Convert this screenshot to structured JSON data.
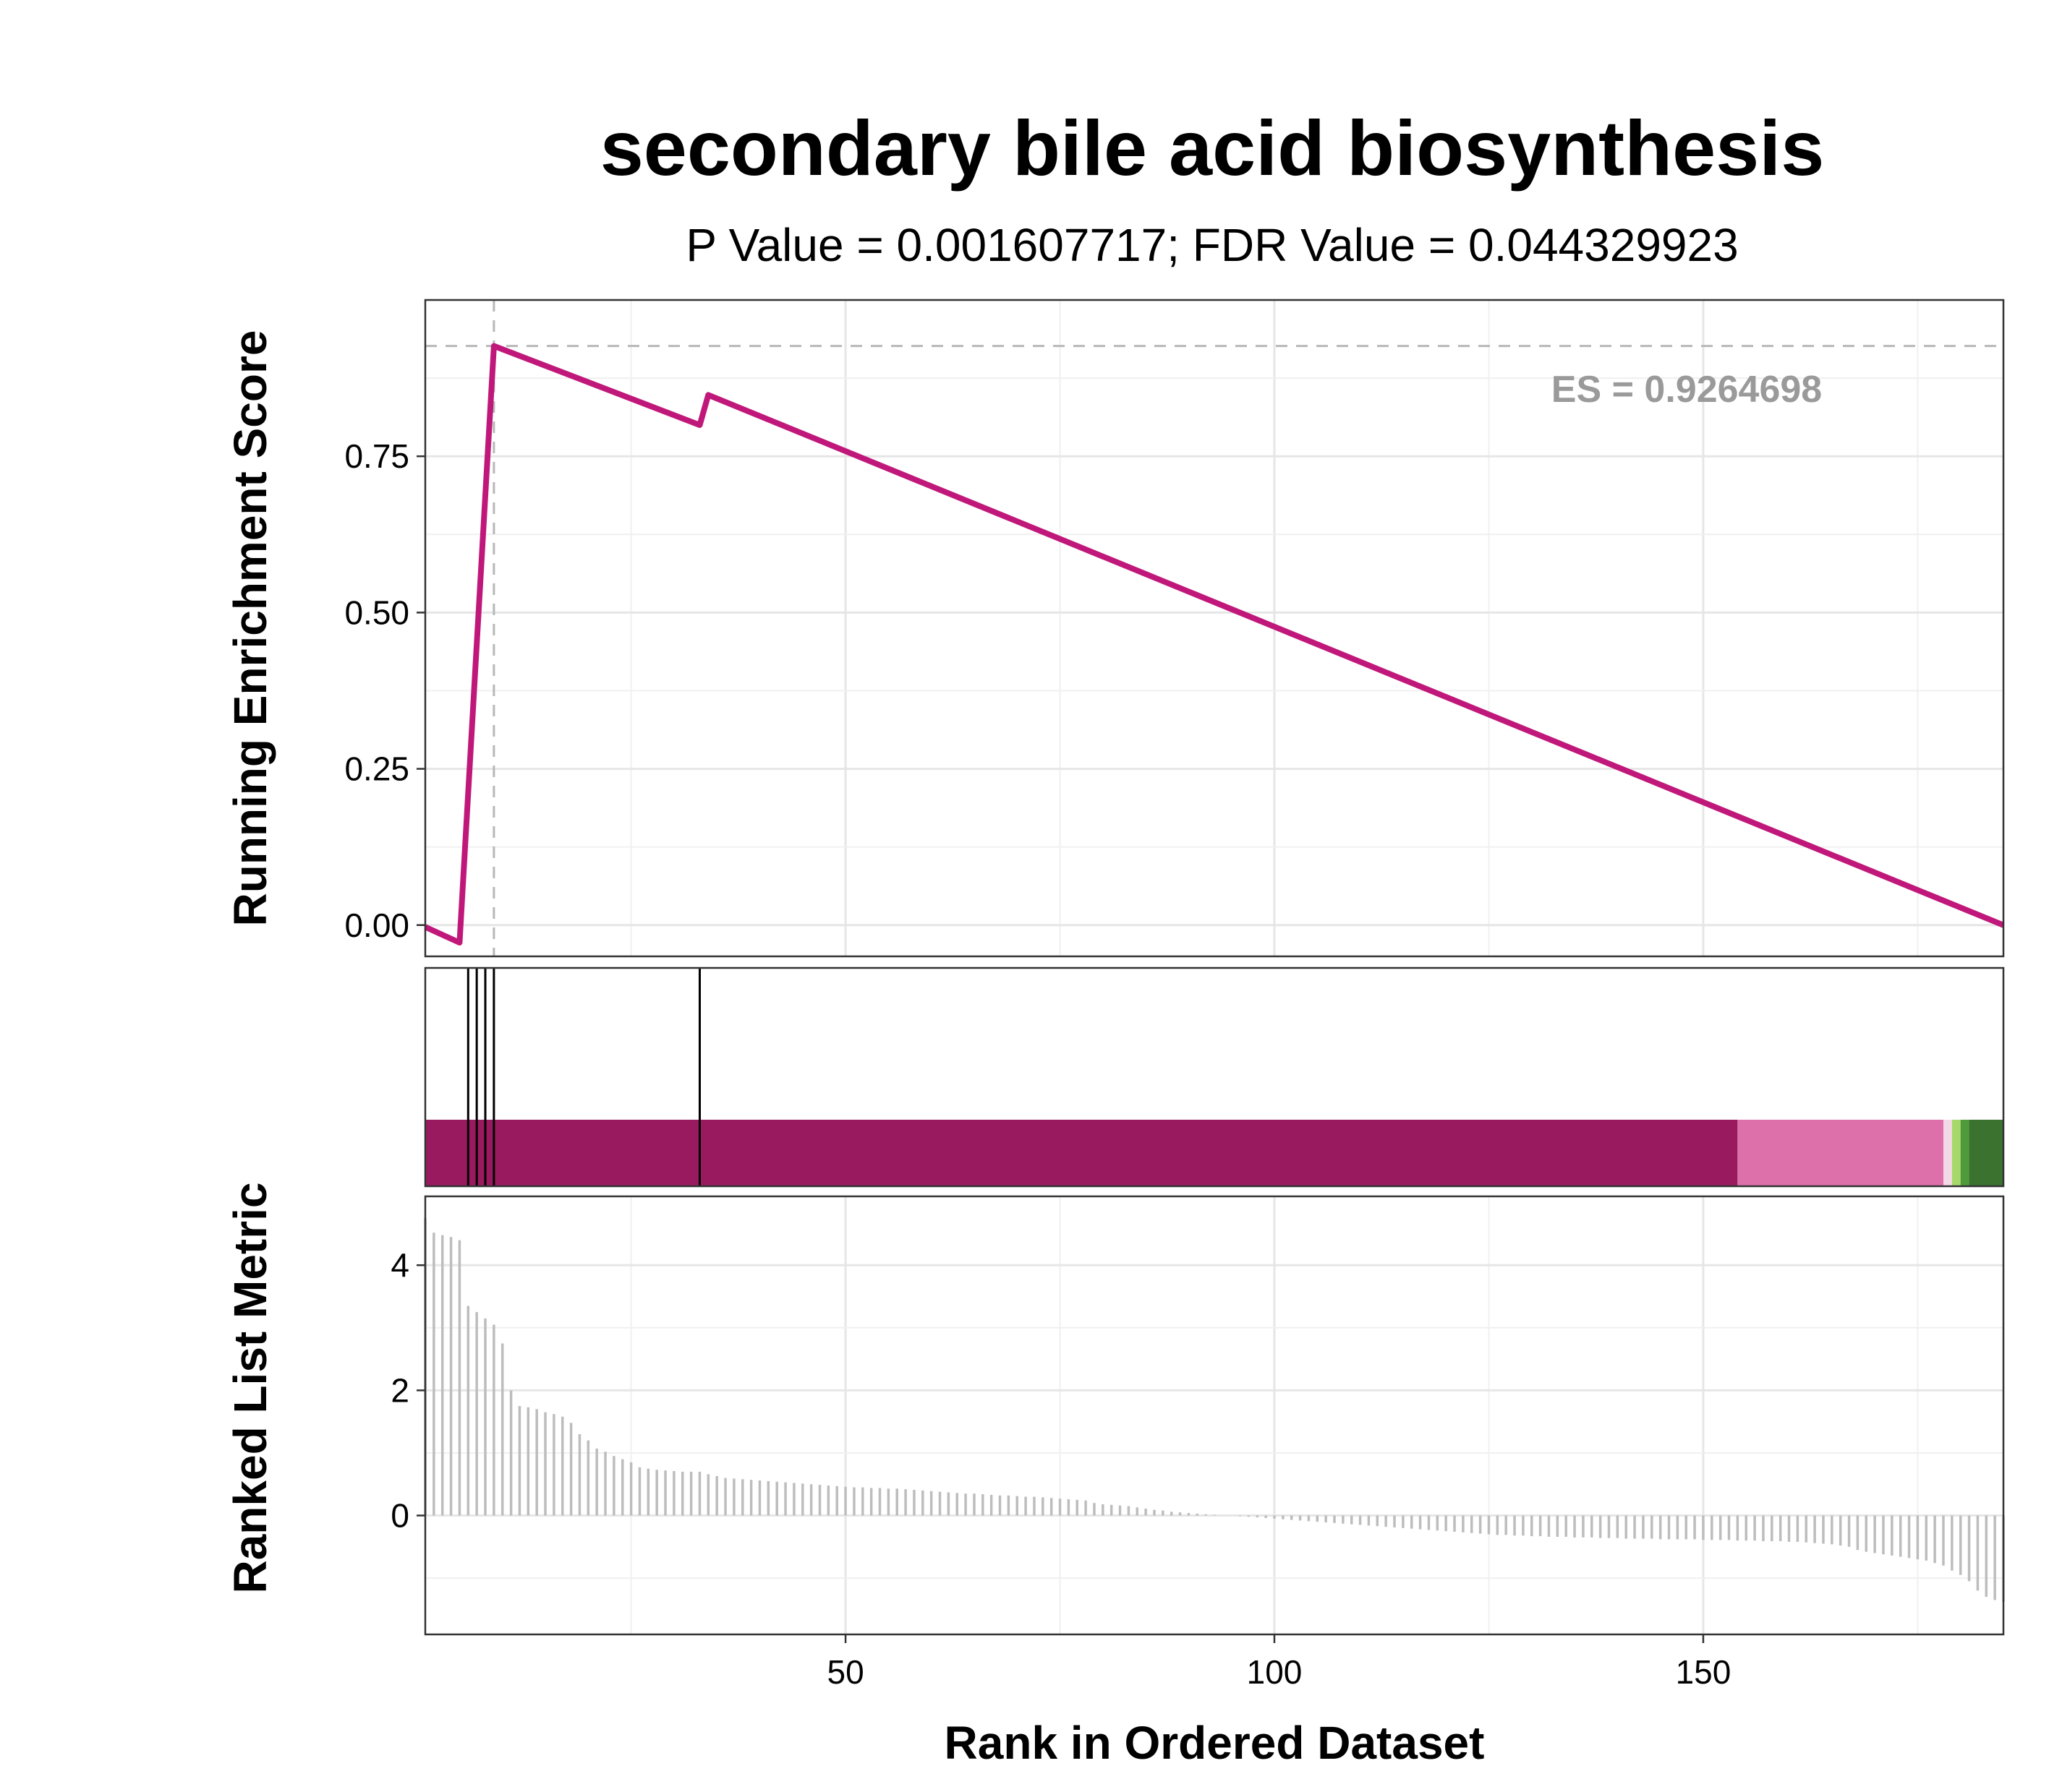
{
  "chart_data": {
    "type": "line",
    "title": "secondary bile acid biosynthesis",
    "subtitle": "P Value = 0.001607717; FDR Value = 0.044329923",
    "xlabel": "Rank in Ordered Dataset",
    "x_ticks": [
      50,
      100,
      150
    ],
    "xlim": [
      1,
      185
    ],
    "panels": {
      "running_score": {
        "ylabel": "Running Enrichment Score",
        "ylim": [
          -0.05,
          1.0
        ],
        "y_ticks": [
          0.0,
          0.25,
          0.5,
          0.75
        ],
        "y_tick_labels": [
          "0.00",
          "0.25",
          "0.50",
          "0.75"
        ],
        "line_color": "#c0187a",
        "es_label": "ES = 0.9264698",
        "max_es": {
          "x": 9,
          "y": 0.9264698
        },
        "points": [
          {
            "x": 1,
            "y": -0.003
          },
          {
            "x": 5,
            "y": -0.028
          },
          {
            "x": 9,
            "y": 0.9264698
          },
          {
            "x": 33,
            "y": 0.8
          },
          {
            "x": 34,
            "y": 0.848
          },
          {
            "x": 185,
            "y": 0.0
          }
        ]
      },
      "hits": {
        "positions": [
          6,
          7,
          8,
          9,
          33
        ],
        "bands": [
          {
            "from": 1,
            "to": 154,
            "color": "#9a1a60"
          },
          {
            "from": 154,
            "to": 178,
            "color": "#dd70aa"
          },
          {
            "from": 178,
            "to": 179,
            "color": "#f3d8e6"
          },
          {
            "from": 179,
            "to": 180,
            "color": "#a6d96a"
          },
          {
            "from": 180,
            "to": 181,
            "color": "#4f9a3a"
          },
          {
            "from": 181,
            "to": 185,
            "color": "#3b7230"
          }
        ]
      },
      "ranked_metric": {
        "ylabel": "Ranked List Metric",
        "ylim": [
          -1.9,
          5.1
        ],
        "y_ticks": [
          0,
          2,
          4
        ],
        "y_tick_labels": [
          "0",
          "2",
          "4"
        ],
        "bar_color": "#bdbdbd",
        "values": [
          4.75,
          4.52,
          4.48,
          4.45,
          4.4,
          3.35,
          3.25,
          3.15,
          3.05,
          2.75,
          2.0,
          1.75,
          1.73,
          1.7,
          1.65,
          1.62,
          1.58,
          1.48,
          1.3,
          1.2,
          1.07,
          1.02,
          0.95,
          0.9,
          0.85,
          0.77,
          0.75,
          0.73,
          0.72,
          0.71,
          0.7,
          0.7,
          0.7,
          0.66,
          0.63,
          0.6,
          0.59,
          0.58,
          0.57,
          0.56,
          0.55,
          0.54,
          0.53,
          0.52,
          0.51,
          0.5,
          0.49,
          0.48,
          0.47,
          0.46,
          0.45,
          0.45,
          0.44,
          0.44,
          0.43,
          0.43,
          0.42,
          0.41,
          0.4,
          0.39,
          0.38,
          0.37,
          0.36,
          0.35,
          0.35,
          0.34,
          0.33,
          0.32,
          0.32,
          0.31,
          0.3,
          0.3,
          0.29,
          0.28,
          0.27,
          0.26,
          0.25,
          0.24,
          0.2,
          0.18,
          0.17,
          0.16,
          0.15,
          0.13,
          0.11,
          0.09,
          0.08,
          0.06,
          0.05,
          0.04,
          0.03,
          0.02,
          0.01,
          0.0,
          0.0,
          -0.01,
          -0.02,
          -0.03,
          -0.04,
          -0.05,
          -0.06,
          -0.07,
          -0.08,
          -0.09,
          -0.1,
          -0.11,
          -0.12,
          -0.13,
          -0.14,
          -0.15,
          -0.16,
          -0.17,
          -0.18,
          -0.19,
          -0.2,
          -0.21,
          -0.22,
          -0.23,
          -0.24,
          -0.25,
          -0.26,
          -0.27,
          -0.28,
          -0.29,
          -0.3,
          -0.31,
          -0.31,
          -0.32,
          -0.32,
          -0.33,
          -0.33,
          -0.34,
          -0.34,
          -0.34,
          -0.35,
          -0.35,
          -0.35,
          -0.36,
          -0.36,
          -0.36,
          -0.37,
          -0.37,
          -0.37,
          -0.37,
          -0.38,
          -0.38,
          -0.38,
          -0.38,
          -0.38,
          -0.39,
          -0.39,
          -0.39,
          -0.39,
          -0.4,
          -0.4,
          -0.4,
          -0.41,
          -0.41,
          -0.41,
          -0.42,
          -0.42,
          -0.43,
          -0.44,
          -0.45,
          -0.46,
          -0.48,
          -0.5,
          -0.55,
          -0.58,
          -0.6,
          -0.62,
          -0.64,
          -0.66,
          -0.68,
          -0.7,
          -0.72,
          -0.76,
          -0.8,
          -0.88,
          -0.95,
          -1.05,
          -1.2,
          -1.3,
          -1.35,
          -1.38
        ]
      }
    }
  }
}
